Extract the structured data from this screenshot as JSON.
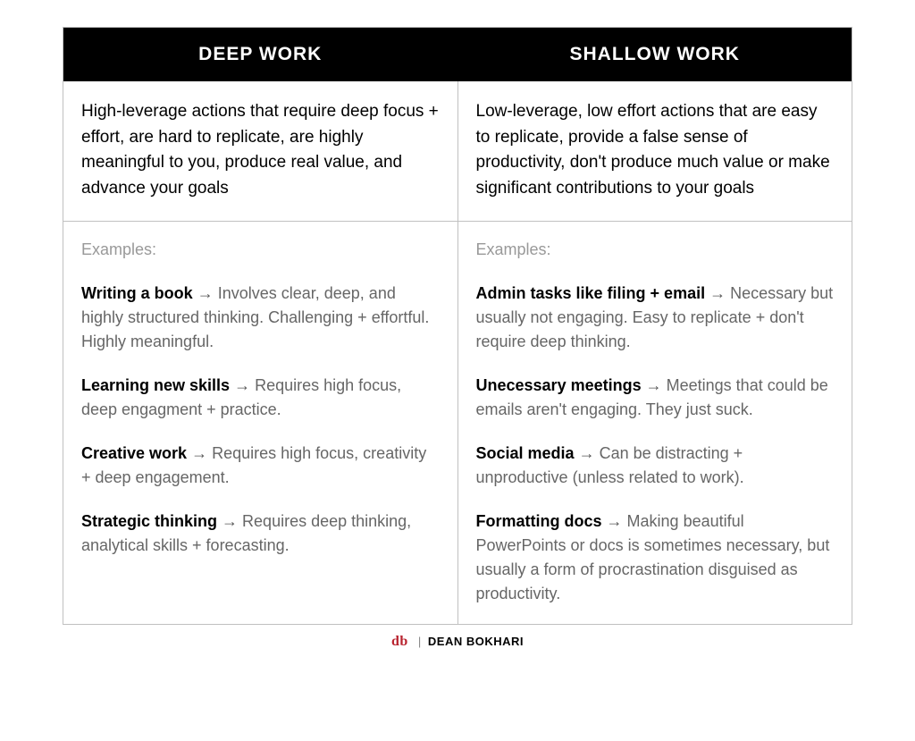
{
  "table": {
    "columns": [
      {
        "header": "DEEP WORK",
        "description": "High-leverage actions that require deep focus + effort, are hard to replicate, are highly meaningful to you, produce real value, and advance your goals",
        "examples_label": "Examples:",
        "examples": [
          {
            "title": "Writing a book",
            "arrow": "→",
            "desc": "Involves clear, deep, and highly structured thinking. Challenging + effortful. Highly meaningful."
          },
          {
            "title": "Learning new skills",
            "arrow": "→",
            "desc": "Requires high focus, deep engagment + practice."
          },
          {
            "title": "Creative work",
            "arrow": "→",
            "desc": "Requires high focus, creativity + deep engagement."
          },
          {
            "title": "Strategic thinking",
            "arrow": "→",
            "desc": "Requires deep thinking, analytical skills + forecasting."
          }
        ]
      },
      {
        "header": "SHALLOW WORK",
        "description": "Low-leverage, low effort actions that are easy to replicate, provide a false sense of productivity, don't produce much value or make significant contributions to your goals",
        "examples_label": "Examples:",
        "examples": [
          {
            "title": "Admin tasks like filing + email",
            "arrow": "→",
            "desc": "Necessary but usually not engaging. Easy to replicate + don't require deep thinking."
          },
          {
            "title": "Unecessary meetings",
            "arrow": "→",
            "desc": "Meetings that could be emails aren't engaging. They just suck."
          },
          {
            "title": "Social media",
            "arrow": "→",
            "desc": "Can be distracting + unproductive (unless related to work)."
          },
          {
            "title": "Formatting docs",
            "arrow": "→",
            "desc": "Making beautiful PowerPoints or docs is sometimes necessary, but usually a form of procrastination disguised as productivity."
          }
        ]
      }
    ]
  },
  "footer": {
    "logo": "db",
    "divider": "|",
    "name": "DEAN BOKHARI"
  },
  "style": {
    "header_bg": "#000000",
    "header_fg": "#ffffff",
    "border_color": "#c0c0c0",
    "body_text": "#000000",
    "muted_text": "#666666",
    "label_text": "#999999",
    "logo_color": "#b8232f",
    "body_font_size": 19,
    "example_font_size": 18,
    "header_font_size": 21,
    "footer_font_size": 13
  }
}
